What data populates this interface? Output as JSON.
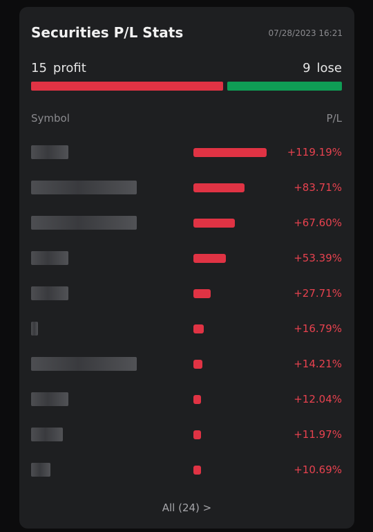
{
  "card": {
    "title": "Securities P/L Stats",
    "timestamp": "07/28/2023 16:21"
  },
  "summary": {
    "profit_count": "15",
    "profit_label": "profit",
    "lose_count": "9",
    "lose_label": "lose",
    "profit_fraction": 0.625,
    "profit_color": "#e03344",
    "lose_color": "#0f9d55"
  },
  "table": {
    "symbol_header": "Symbol",
    "pl_header": "P/L",
    "rows": [
      {
        "pl": "+119.19%",
        "value": 119.19
      },
      {
        "pl": "+83.71%",
        "value": 83.71
      },
      {
        "pl": "+67.60%",
        "value": 67.6
      },
      {
        "pl": "+53.39%",
        "value": 53.39
      },
      {
        "pl": "+27.71%",
        "value": 27.71
      },
      {
        "pl": "+16.79%",
        "value": 16.79
      },
      {
        "pl": "+14.21%",
        "value": 14.21
      },
      {
        "pl": "+12.04%",
        "value": 12.04
      },
      {
        "pl": "+11.97%",
        "value": 11.97
      },
      {
        "pl": "+10.69%",
        "value": 10.69
      }
    ]
  },
  "footer": {
    "all_label": "All (24) >"
  }
}
